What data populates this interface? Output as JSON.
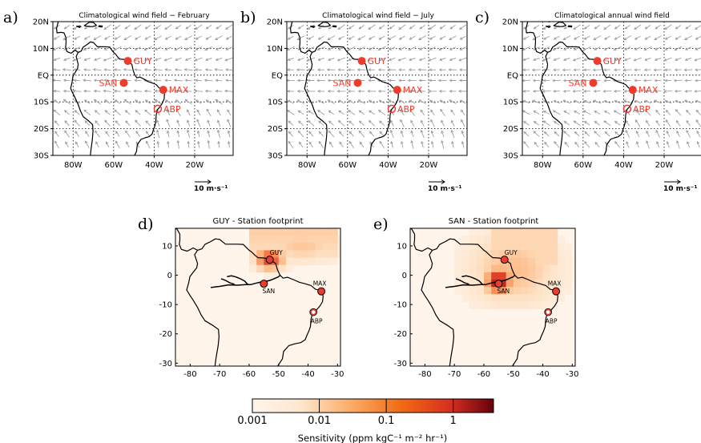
{
  "top_panels": [
    {
      "letter": "a)",
      "title": "Climatological wind field − February",
      "scale_label": "10 m·s⁻¹"
    },
    {
      "letter": "b)",
      "title": "Climatological wind field − July",
      "scale_label": "10 m·s⁻¹"
    },
    {
      "letter": "c)",
      "title": "Climatological annual wind field",
      "scale_label": "10 m·s⁻¹"
    }
  ],
  "bottom_panels": [
    {
      "letter": "d)",
      "title": "GUY - Station footprint"
    },
    {
      "letter": "e)",
      "title": "SAN - Station footprint"
    }
  ],
  "top_axis": {
    "lat_ticks": [
      "20N",
      "10N",
      "EQ",
      "10S",
      "20S",
      "30S"
    ],
    "lon_ticks": [
      "80W",
      "60W",
      "40W",
      "20W"
    ]
  },
  "bottom_axis": {
    "y_ticks": [
      "10",
      "0",
      "-10",
      "-20",
      "-30"
    ],
    "x_ticks": [
      "-80",
      "-70",
      "-60",
      "-50",
      "-40",
      "-30"
    ]
  },
  "stations": [
    {
      "name": "GUY",
      "lon": -53,
      "lat": 5.3,
      "marker": "filled"
    },
    {
      "name": "SAN",
      "lon": -55,
      "lat": -2.9,
      "marker": "filled"
    },
    {
      "name": "MAX",
      "lon": -35.5,
      "lat": -5.5,
      "marker": "filled"
    },
    {
      "name": "ABP",
      "lon": -38.2,
      "lat": -12.6,
      "marker": "open"
    }
  ],
  "colorbar": {
    "ticks": [
      "0.001",
      "0.01",
      "0.1",
      "1"
    ],
    "label": "Sensitivity (ppm kgC⁻¹ m⁻² hr⁻¹)",
    "scale": "log",
    "range": [
      0.001,
      4
    ],
    "colors": [
      "#fff5eb",
      "#fdd0a2",
      "#fc8d59",
      "#ef3b2c",
      "#a50f15",
      "#67000d"
    ]
  },
  "colors": {
    "station_red": "#ef3b2c",
    "wind_arrow": "#9e9e9e",
    "map_background": "#fff5eb",
    "coast": "#000000"
  }
}
